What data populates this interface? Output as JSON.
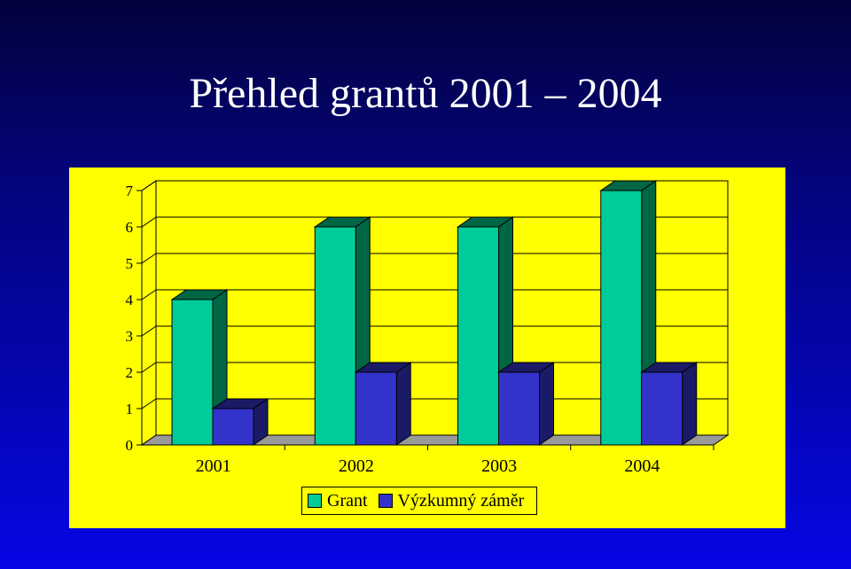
{
  "slide": {
    "title": "Přehled grantů 2001 – 2004"
  },
  "colors": {
    "background_top": "#02023c",
    "background_bottom": "#0606e6",
    "chart_background": "#ffff00",
    "grant_front": "#00cc99",
    "grant_side": "#006644",
    "vyzkumny_front": "#3333cc",
    "vyzkumny_side": "#1a1a66"
  },
  "chart_data": {
    "type": "bar",
    "style": "3d-clustered-column",
    "categories": [
      "2001",
      "2002",
      "2003",
      "2004"
    ],
    "series": [
      {
        "name": "Grant",
        "values": [
          4,
          6,
          6,
          7
        ],
        "color": "#00cc99"
      },
      {
        "name": "Výzkumný záměr",
        "values": [
          1,
          2,
          2,
          2
        ],
        "color": "#3333cc"
      }
    ],
    "y_ticks": [
      "0",
      "1",
      "2",
      "3",
      "4",
      "5",
      "6",
      "7"
    ],
    "ylim": [
      0,
      7
    ],
    "grid": true,
    "legend_position": "bottom",
    "title": "",
    "xlabel": "",
    "ylabel": ""
  }
}
